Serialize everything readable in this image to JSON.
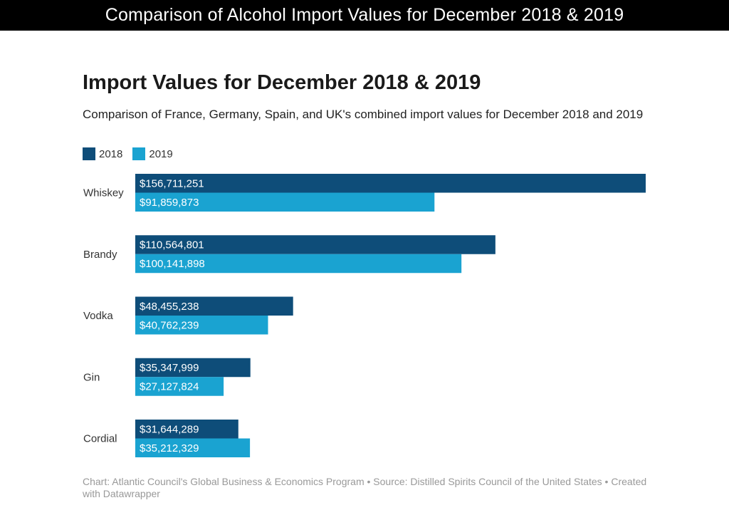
{
  "banner": {
    "title": "Comparison of Alcohol Import Values for December 2018 & 2019"
  },
  "chart_data": {
    "type": "bar",
    "orientation": "horizontal",
    "title": "Import Values for December 2018 & 2019",
    "subtitle": "Comparison of France, Germany, Spain, and UK's combined import values for December 2018 and 2019",
    "categories": [
      "Whiskey",
      "Brandy",
      "Vodka",
      "Gin",
      "Cordial"
    ],
    "series": [
      {
        "name": "2018",
        "color": "#0e4d79",
        "values": [
          156711251,
          110564801,
          48455238,
          35347999,
          31644289
        ],
        "labels": [
          "$156,711,251",
          "$110,564,801",
          "$48,455,238",
          "$35,347,999",
          "$31,644,289"
        ]
      },
      {
        "name": "2019",
        "color": "#1aa3d1",
        "values": [
          91859873,
          100141898,
          40762239,
          27127824,
          35212329
        ],
        "labels": [
          "$91,859,873",
          "$100,141,898",
          "$40,762,239",
          "$27,127,824",
          "$35,212,329"
        ]
      }
    ],
    "xlim": [
      0,
      156711251
    ],
    "legend": "top-left",
    "grid": false
  },
  "footer": {
    "text": "Chart: Atlantic Council's Global Business & Economics Program • Source: Distilled Spirits Council of the United States • Created with Datawrapper"
  }
}
